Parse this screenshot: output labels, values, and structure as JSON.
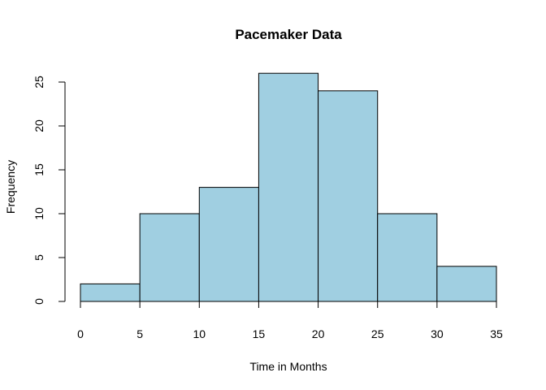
{
  "chart_data": {
    "type": "bar",
    "title": "Pacemaker Data",
    "xlabel": "Time in Months",
    "ylabel": "Frequency",
    "bins": [
      {
        "start": 0,
        "end": 5,
        "count": 2
      },
      {
        "start": 5,
        "end": 10,
        "count": 10
      },
      {
        "start": 10,
        "end": 15,
        "count": 13
      },
      {
        "start": 15,
        "end": 20,
        "count": 26
      },
      {
        "start": 20,
        "end": 25,
        "count": 24
      },
      {
        "start": 25,
        "end": 30,
        "count": 10
      },
      {
        "start": 30,
        "end": 35,
        "count": 4
      }
    ],
    "xticks": [
      "0",
      "5",
      "10",
      "15",
      "20",
      "25",
      "30",
      "35"
    ],
    "yticks": [
      "0",
      "5",
      "10",
      "15",
      "20",
      "25"
    ],
    "xlim": [
      0,
      35
    ],
    "ylim": [
      0,
      26
    ],
    "bar_color": "#a0cfe1",
    "grid": false
  }
}
